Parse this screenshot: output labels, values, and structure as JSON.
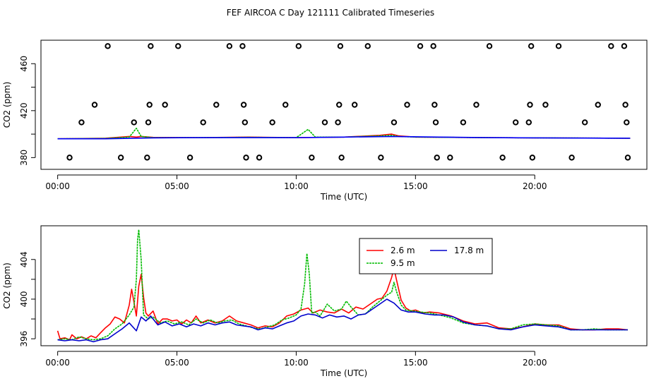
{
  "figure": {
    "title": "FEF AIRCOA C  Day 121111  Calibrated Timeseries"
  },
  "chart_data": [
    {
      "type": "line",
      "name": "top-panel",
      "title": "",
      "xlabel": "Time (UTC)",
      "ylabel": "CO2 (ppm)",
      "xlim": [
        -0.7,
        24.7
      ],
      "ylim": [
        370,
        480
      ],
      "x_ticks": [
        0,
        5,
        10,
        15,
        20
      ],
      "x_tick_labels": [
        "00:00",
        "05:00",
        "10:00",
        "15:00",
        "20:00"
      ],
      "y_ticks": [
        380,
        400,
        420,
        440,
        460
      ],
      "y_tick_labels": [
        "380",
        "",
        "420",
        "",
        "460"
      ],
      "scatter_points": {
        "name": "calibration",
        "symbol": "circle",
        "color": "#000000",
        "x": [
          0.5,
          1.0,
          1.55,
          2.1,
          2.65,
          3.2,
          3.75,
          3.8,
          3.85,
          3.9,
          4.5,
          5.05,
          5.55,
          6.1,
          6.65,
          7.2,
          7.75,
          7.8,
          7.85,
          7.9,
          8.45,
          9.0,
          9.55,
          10.1,
          10.65,
          11.2,
          11.75,
          11.8,
          11.85,
          11.9,
          12.45,
          13.0,
          13.55,
          14.1,
          14.65,
          15.2,
          15.75,
          15.8,
          15.85,
          15.9,
          16.45,
          17.0,
          17.55,
          18.1,
          18.65,
          19.2,
          19.75,
          19.8,
          19.85,
          19.9,
          20.45,
          21.0,
          21.55,
          22.1,
          22.65,
          23.2,
          23.75,
          23.8,
          23.85,
          23.9
        ],
        "y": [
          380,
          410,
          425,
          475,
          380,
          410,
          380,
          410,
          425,
          475,
          425,
          475,
          380,
          410,
          425,
          475,
          475,
          425,
          410,
          380,
          380,
          410,
          425,
          475,
          380,
          410,
          410,
          425,
          475,
          380,
          425,
          475,
          380,
          410,
          425,
          475,
          475,
          425,
          410,
          380,
          380,
          410,
          425,
          475,
          380,
          410,
          410,
          425,
          475,
          380,
          425,
          475,
          380,
          410,
          425,
          475,
          475,
          425,
          410,
          380
        ]
      },
      "series": [
        {
          "name": "2.6 m",
          "color": "#ff0000",
          "x": [
            0,
            2,
            3,
            3.3,
            3.5,
            4,
            6,
            8,
            10,
            12,
            13.5,
            14,
            14.3,
            15,
            18,
            24
          ],
          "values": [
            396,
            396.5,
            398,
            397.5,
            398,
            397.2,
            397,
            397.5,
            397,
            397.5,
            399,
            400,
            398.5,
            397.5,
            397,
            396.5
          ]
        },
        {
          "name": "9.5 m",
          "color": "#00bb00",
          "x": [
            0,
            2,
            3,
            3.3,
            3.5,
            4,
            6,
            8,
            10,
            10.5,
            10.8,
            12,
            13.5,
            14,
            14.3,
            15,
            18,
            24
          ],
          "values": [
            396,
            396.3,
            397.5,
            405,
            398,
            397,
            397,
            397.3,
            397,
            404,
            397.5,
            397.5,
            398.5,
            399,
            398,
            397.5,
            397,
            396.5
          ]
        },
        {
          "name": "17.8 m",
          "color": "#0000ff",
          "x": [
            0,
            2,
            4,
            6,
            8,
            10,
            12,
            14,
            16,
            18,
            20,
            24
          ],
          "values": [
            396,
            396,
            396.8,
            397,
            397,
            397,
            397.5,
            398,
            397.5,
            397,
            396.8,
            396.5
          ]
        }
      ]
    },
    {
      "type": "line",
      "name": "bottom-panel",
      "title": "",
      "xlabel": "Time (UTC)",
      "ylabel": "CO2 (ppm)",
      "xlim": [
        -0.7,
        24.7
      ],
      "ylim": [
        395.3,
        407.4
      ],
      "x_ticks": [
        0,
        5,
        10,
        15,
        20
      ],
      "x_tick_labels": [
        "00:00",
        "05:00",
        "10:00",
        "15:00",
        "20:00"
      ],
      "y_ticks": [
        396,
        398,
        400,
        402,
        404
      ],
      "y_tick_labels": [
        "396",
        "",
        "400",
        "",
        "404"
      ],
      "legend": {
        "placement": "top-center",
        "entries": [
          "2.6 m",
          "17.8 m",
          "9.5 m"
        ]
      },
      "series": [
        {
          "name": "2.6 m",
          "color": "#ff0000",
          "x": [
            0,
            0.1,
            0.3,
            0.5,
            0.6,
            0.8,
            1.0,
            1.2,
            1.4,
            1.6,
            1.8,
            2.0,
            2.2,
            2.4,
            2.6,
            2.8,
            3.0,
            3.1,
            3.2,
            3.3,
            3.4,
            3.5,
            3.6,
            3.7,
            3.8,
            4.0,
            4.2,
            4.4,
            4.6,
            4.8,
            5.0,
            5.2,
            5.4,
            5.6,
            5.8,
            6.0,
            6.3,
            6.6,
            6.9,
            7.2,
            7.5,
            7.8,
            8.1,
            8.4,
            8.7,
            9.0,
            9.3,
            9.6,
            9.9,
            10.2,
            10.5,
            10.7,
            11.0,
            11.3,
            11.6,
            11.9,
            12.2,
            12.5,
            12.8,
            13.1,
            13.4,
            13.6,
            13.8,
            14.0,
            14.1,
            14.2,
            14.4,
            14.6,
            14.8,
            15.0,
            15.3,
            15.6,
            16.0,
            16.5,
            17.0,
            17.5,
            18.0,
            18.5,
            19.0,
            19.5,
            20.0,
            20.5,
            21.0,
            21.5,
            22.0,
            22.5,
            23.0,
            23.5,
            23.9
          ],
          "values": [
            396.8,
            396.0,
            396.1,
            395.9,
            396.4,
            396.0,
            396.2,
            396.0,
            396.3,
            396.1,
            396.6,
            397.1,
            397.5,
            398.2,
            398.0,
            397.6,
            399.4,
            401.0,
            399.7,
            398.3,
            401.3,
            402.5,
            400.2,
            398.6,
            398.3,
            398.8,
            397.5,
            398.0,
            398.0,
            397.8,
            397.9,
            397.5,
            397.9,
            397.6,
            398.3,
            397.6,
            397.9,
            397.6,
            397.8,
            398.3,
            397.8,
            397.6,
            397.4,
            397.1,
            397.3,
            397.2,
            397.6,
            398.3,
            398.5,
            398.9,
            399.1,
            398.6,
            398.9,
            398.7,
            398.6,
            399.0,
            398.6,
            399.2,
            399.0,
            399.5,
            400.0,
            400.1,
            400.8,
            402.2,
            403.1,
            402.0,
            399.9,
            399.1,
            398.8,
            398.9,
            398.6,
            398.7,
            398.6,
            398.3,
            397.8,
            397.5,
            397.6,
            397.1,
            397.0,
            397.2,
            397.5,
            397.4,
            397.4,
            397.0,
            396.9,
            396.9,
            397.0,
            397.0,
            396.9
          ]
        },
        {
          "name": "9.5 m",
          "color": "#00bb00",
          "x": [
            0,
            0.3,
            0.6,
            0.9,
            1.2,
            1.5,
            1.8,
            2.1,
            2.4,
            2.7,
            3.0,
            3.2,
            3.3,
            3.35,
            3.4,
            3.5,
            3.6,
            3.8,
            4.0,
            4.3,
            4.6,
            4.9,
            5.2,
            5.5,
            5.8,
            6.1,
            6.4,
            6.7,
            7.0,
            7.3,
            7.6,
            7.9,
            8.2,
            8.5,
            8.8,
            9.1,
            9.4,
            9.7,
            10.0,
            10.2,
            10.35,
            10.45,
            10.55,
            10.65,
            10.8,
            11.0,
            11.3,
            11.6,
            11.9,
            12.1,
            12.3,
            12.6,
            12.9,
            13.2,
            13.5,
            13.8,
            14.0,
            14.1,
            14.2,
            14.4,
            14.6,
            14.9,
            15.2,
            15.6,
            16.0,
            16.5,
            17.0,
            17.5,
            18.0,
            18.5,
            19.0,
            19.5,
            20.0,
            20.5,
            21.0,
            21.5,
            22.0,
            22.5,
            23.0,
            23.5,
            23.9
          ],
          "values": [
            395.9,
            396.0,
            395.9,
            396.2,
            396.0,
            395.9,
            396.0,
            396.3,
            397.0,
            397.5,
            398.4,
            399.2,
            402.0,
            406.0,
            407.0,
            404.0,
            398.4,
            398.0,
            398.2,
            397.6,
            397.8,
            397.5,
            397.7,
            397.4,
            398.0,
            397.6,
            397.9,
            397.6,
            397.8,
            397.9,
            397.5,
            397.3,
            397.1,
            397.0,
            397.2,
            397.4,
            397.9,
            398.1,
            398.4,
            399.0,
            401.5,
            404.6,
            402.5,
            398.6,
            398.7,
            398.3,
            399.5,
            398.8,
            399.0,
            399.8,
            399.2,
            398.4,
            398.5,
            399.2,
            399.8,
            400.4,
            400.7,
            401.7,
            400.8,
            399.4,
            398.9,
            398.8,
            398.7,
            398.6,
            398.4,
            398.1,
            397.6,
            397.4,
            397.3,
            397.0,
            397.0,
            397.4,
            397.5,
            397.4,
            397.3,
            396.9,
            396.9,
            397.0,
            396.9,
            396.9,
            396.9
          ]
        },
        {
          "name": "17.8 m",
          "color": "#0000cc",
          "x": [
            0,
            0.3,
            0.6,
            0.9,
            1.2,
            1.5,
            1.8,
            2.1,
            2.4,
            2.7,
            3.0,
            3.3,
            3.5,
            3.7,
            3.9,
            4.2,
            4.5,
            4.8,
            5.1,
            5.4,
            5.7,
            6.0,
            6.3,
            6.6,
            6.9,
            7.2,
            7.5,
            7.8,
            8.1,
            8.4,
            8.7,
            9.0,
            9.3,
            9.6,
            9.9,
            10.2,
            10.5,
            10.8,
            11.1,
            11.4,
            11.7,
            12.0,
            12.3,
            12.6,
            12.9,
            13.2,
            13.5,
            13.8,
            14.1,
            14.4,
            14.7,
            15.0,
            15.4,
            15.8,
            16.2,
            16.6,
            17.0,
            17.5,
            18.0,
            18.5,
            19.0,
            19.5,
            20.0,
            20.5,
            21.0,
            21.5,
            22.0,
            22.5,
            23.0,
            23.5,
            23.9
          ],
          "values": [
            395.9,
            395.8,
            395.9,
            395.8,
            395.9,
            395.7,
            395.9,
            396.0,
            396.5,
            397.0,
            397.6,
            396.8,
            398.2,
            397.8,
            398.3,
            397.4,
            397.7,
            397.3,
            397.5,
            397.2,
            397.5,
            397.3,
            397.6,
            397.4,
            397.6,
            397.7,
            397.4,
            397.3,
            397.2,
            396.9,
            397.1,
            397.0,
            397.3,
            397.6,
            397.8,
            398.3,
            398.5,
            398.4,
            398.1,
            398.4,
            398.2,
            398.3,
            398.0,
            398.4,
            398.5,
            399.0,
            399.5,
            400.0,
            399.6,
            398.9,
            398.7,
            398.7,
            398.5,
            398.4,
            398.4,
            398.2,
            397.7,
            397.4,
            397.3,
            397.0,
            396.9,
            397.2,
            397.4,
            397.3,
            397.2,
            396.9,
            396.9,
            396.9,
            396.9,
            396.9,
            396.9
          ]
        }
      ]
    }
  ]
}
